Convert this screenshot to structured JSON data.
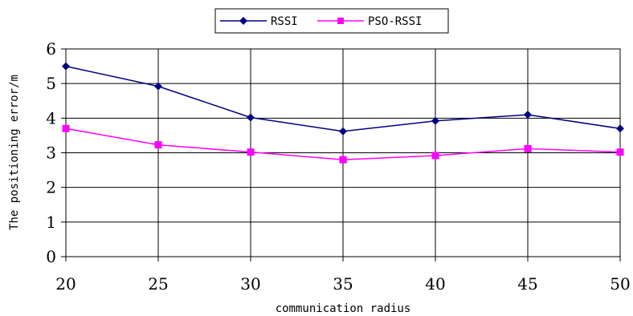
{
  "chart_data": {
    "type": "line",
    "title": "",
    "xlabel": "communication radius",
    "ylabel": "The positioning error/m",
    "x": [
      20,
      25,
      30,
      35,
      40,
      45,
      50
    ],
    "xlim": [
      20,
      50
    ],
    "ylim": [
      0,
      6
    ],
    "y_ticks": [
      0,
      1,
      2,
      3,
      4,
      5,
      6
    ],
    "grid": true,
    "legend_position": "top-center",
    "series": [
      {
        "name": "RSSI",
        "values": [
          5.5,
          4.92,
          4.02,
          3.62,
          3.92,
          4.1,
          3.7
        ],
        "color": "#000080",
        "marker": "diamond"
      },
      {
        "name": "PSO-RSSI",
        "values": [
          3.7,
          3.23,
          3.02,
          2.8,
          2.92,
          3.12,
          3.02
        ],
        "color": "#ff00ff",
        "marker": "square"
      }
    ]
  }
}
